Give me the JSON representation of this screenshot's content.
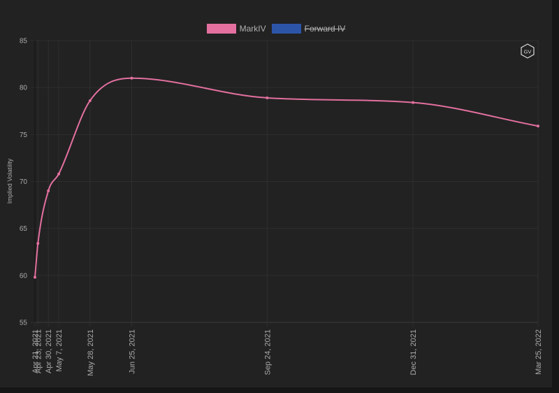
{
  "legend": [
    {
      "label": "MarkIV",
      "color": "#e3709f",
      "hidden": false
    },
    {
      "label": "Forward IV",
      "color": "#2c55a8",
      "hidden": true
    }
  ],
  "logo": {
    "text": "GV"
  },
  "chart_data": {
    "type": "line",
    "title": "",
    "xlabel": "",
    "ylabel": "Implied Volatility",
    "ylim": [
      55,
      85
    ],
    "yticks": [
      55,
      60,
      65,
      70,
      75,
      80,
      85
    ],
    "grid": true,
    "legend_position": "top-center",
    "series": [
      {
        "name": "MarkIV",
        "color": "#e3709f",
        "points": [
          {
            "date": "2021-04-21",
            "label": "Apr 21, 2021",
            "y": 59.8
          },
          {
            "date": "2021-04-23",
            "label": "Apr 23, 2021",
            "y": 63.4
          },
          {
            "date": "2021-04-30",
            "label": "Apr 30, 2021",
            "y": 69.0
          },
          {
            "date": "2021-05-07",
            "label": "May 7, 2021",
            "y": 70.8
          },
          {
            "date": "2021-05-28",
            "label": "May 28, 2021",
            "y": 78.6
          },
          {
            "date": "2021-06-25",
            "label": "Jun 25, 2021",
            "y": 81.0
          },
          {
            "date": "2021-09-24",
            "label": "Sep 24, 2021",
            "y": 78.9
          },
          {
            "date": "2021-12-31",
            "label": "Dec 31, 2021",
            "y": 78.4
          },
          {
            "date": "2022-03-25",
            "label": "Mar 25, 2022",
            "y": 75.9
          }
        ]
      },
      {
        "name": "Forward IV",
        "color": "#2c55a8",
        "points": []
      }
    ]
  }
}
